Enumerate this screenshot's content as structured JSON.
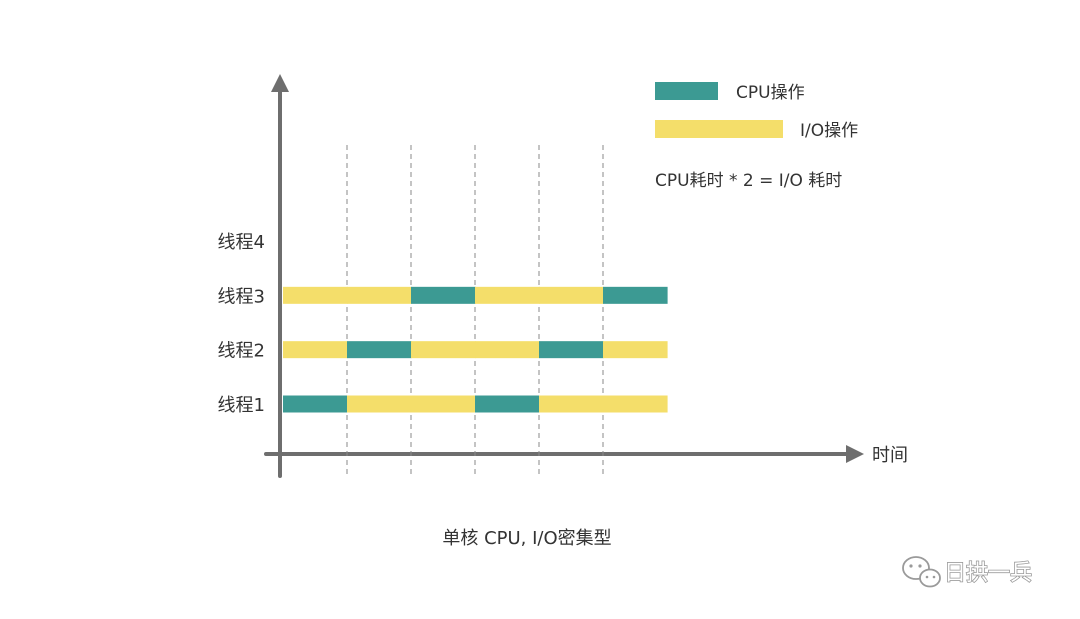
{
  "legend": {
    "cpu_label": "CPU操作",
    "io_label": "I/O操作"
  },
  "note": "CPU耗时 * 2 = I/O 耗时",
  "x_axis_label": "时间",
  "caption": "单核 CPU, I/O密集型",
  "watermark": "日拱一兵",
  "colors": {
    "cpu": "#3c9a93",
    "io": "#f4de6a",
    "axis": "#6e6e6e",
    "gridline": "#8a8a8a"
  },
  "chart_data": {
    "type": "timeline",
    "time_slots": 6,
    "threads": [
      {
        "name": "线程4",
        "segments": []
      },
      {
        "name": "线程3",
        "segments": [
          "io",
          "io",
          "cpu",
          "io",
          "io",
          "cpu"
        ]
      },
      {
        "name": "线程2",
        "segments": [
          "io",
          "cpu",
          "io",
          "io",
          "cpu",
          "io"
        ]
      },
      {
        "name": "线程1",
        "segments": [
          "cpu",
          "io",
          "io",
          "cpu",
          "io",
          "io"
        ]
      }
    ]
  }
}
